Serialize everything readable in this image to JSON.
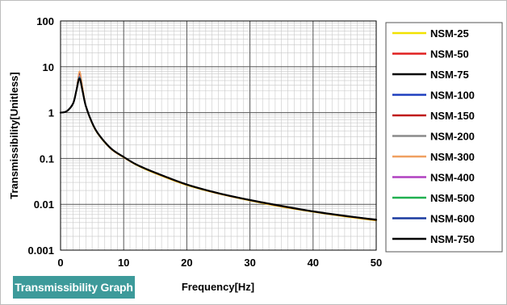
{
  "caption": "Transmissibility Graph",
  "chart_data": {
    "type": "line",
    "xlabel": "Frequency[Hz]",
    "ylabel": "Transmissibility[Unitless]",
    "xlim": [
      0,
      50
    ],
    "ylim": [
      0.001,
      100
    ],
    "yscale": "log",
    "x_ticks": [
      0,
      10,
      20,
      30,
      40,
      50
    ],
    "x_tick_labels": [
      "0",
      "10",
      "20",
      "30",
      "40",
      "50"
    ],
    "y_ticks": [
      0.001,
      0.01,
      0.1,
      1,
      10,
      100
    ],
    "y_tick_labels": [
      "0.001",
      "0.01",
      "0.1",
      "1",
      "10",
      "100"
    ],
    "grid": true,
    "legend_position": "right",
    "x": [
      0,
      1,
      2,
      2.5,
      3,
      3.5,
      4,
      5,
      6,
      8,
      10,
      12,
      15,
      20,
      25,
      30,
      35,
      40,
      45,
      50
    ],
    "series": [
      {
        "name": "NSM-25",
        "color": "#f2e200",
        "values": [
          1.0,
          1.08,
          1.6,
          3.0,
          7.5,
          3.4,
          1.4,
          0.58,
          0.33,
          0.16,
          0.105,
          0.072,
          0.047,
          0.026,
          0.017,
          0.012,
          0.0088,
          0.0068,
          0.0054,
          0.0044
        ]
      },
      {
        "name": "NSM-50",
        "color": "#e02020",
        "values": [
          1.0,
          1.08,
          1.6,
          3.0,
          7.2,
          3.3,
          1.4,
          0.59,
          0.335,
          0.162,
          0.106,
          0.073,
          0.048,
          0.0265,
          0.0172,
          0.0122,
          0.009,
          0.0069,
          0.0055,
          0.0045
        ]
      },
      {
        "name": "NSM-75",
        "color": "#000000",
        "values": [
          1.0,
          1.08,
          1.6,
          3.0,
          7.0,
          3.2,
          1.4,
          0.6,
          0.34,
          0.165,
          0.108,
          0.074,
          0.049,
          0.027,
          0.0175,
          0.0124,
          0.0092,
          0.007,
          0.0056,
          0.0046
        ]
      },
      {
        "name": "NSM-100",
        "color": "#1f3fbf",
        "values": [
          1.0,
          1.08,
          1.6,
          3.0,
          6.8,
          3.2,
          1.4,
          0.6,
          0.34,
          0.165,
          0.108,
          0.074,
          0.049,
          0.027,
          0.0175,
          0.0124,
          0.0092,
          0.007,
          0.0056,
          0.0046
        ]
      },
      {
        "name": "NSM-150",
        "color": "#c01818",
        "values": [
          1.0,
          1.08,
          1.6,
          3.0,
          6.6,
          3.1,
          1.4,
          0.6,
          0.34,
          0.165,
          0.108,
          0.074,
          0.049,
          0.027,
          0.0175,
          0.0124,
          0.0092,
          0.007,
          0.0056,
          0.0046
        ]
      },
      {
        "name": "NSM-200",
        "color": "#8a8a8a",
        "values": [
          1.0,
          1.08,
          1.6,
          3.0,
          6.4,
          3.1,
          1.4,
          0.6,
          0.34,
          0.165,
          0.108,
          0.074,
          0.049,
          0.027,
          0.0175,
          0.0124,
          0.0092,
          0.007,
          0.0056,
          0.0046
        ]
      },
      {
        "name": "NSM-300",
        "color": "#f0a060",
        "values": [
          1.0,
          1.08,
          1.6,
          3.0,
          8.0,
          3.5,
          1.4,
          0.6,
          0.34,
          0.165,
          0.108,
          0.074,
          0.049,
          0.027,
          0.0175,
          0.0124,
          0.0092,
          0.007,
          0.0056,
          0.0046
        ]
      },
      {
        "name": "NSM-400",
        "color": "#b040c0",
        "values": [
          1.0,
          1.08,
          1.6,
          3.0,
          6.2,
          3.0,
          1.4,
          0.6,
          0.34,
          0.165,
          0.108,
          0.074,
          0.049,
          0.027,
          0.0175,
          0.0124,
          0.0092,
          0.007,
          0.0056,
          0.0046
        ]
      },
      {
        "name": "NSM-500",
        "color": "#20b050",
        "values": [
          1.0,
          1.08,
          1.6,
          3.0,
          6.0,
          3.0,
          1.4,
          0.6,
          0.34,
          0.165,
          0.108,
          0.074,
          0.049,
          0.027,
          0.0175,
          0.0124,
          0.0092,
          0.007,
          0.0056,
          0.0046
        ]
      },
      {
        "name": "NSM-600",
        "color": "#1a3aa0",
        "values": [
          1.0,
          1.08,
          1.6,
          3.0,
          5.8,
          2.9,
          1.4,
          0.6,
          0.34,
          0.165,
          0.108,
          0.074,
          0.049,
          0.027,
          0.0175,
          0.0124,
          0.0092,
          0.007,
          0.0056,
          0.0046
        ]
      },
      {
        "name": "NSM-750",
        "color": "#000000",
        "values": [
          1.0,
          1.08,
          1.6,
          3.0,
          5.5,
          2.9,
          1.4,
          0.6,
          0.34,
          0.165,
          0.108,
          0.074,
          0.049,
          0.027,
          0.0175,
          0.0124,
          0.0092,
          0.007,
          0.0056,
          0.0046
        ]
      }
    ]
  }
}
